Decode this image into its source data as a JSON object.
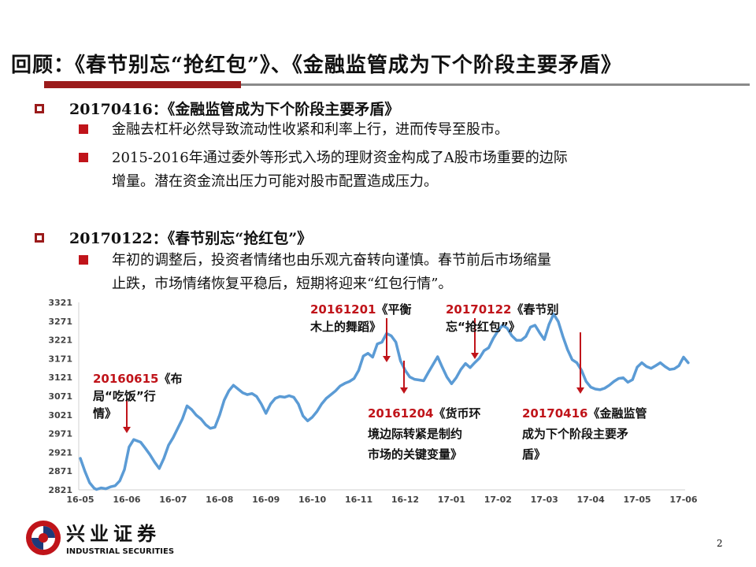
{
  "title": "回顾：《春节别忘“抢红包”》、《金融监管成为下个阶段主要矛盾》",
  "sections": [
    {
      "heading": "20170416：《金融监管成为下个阶段主要矛盾》",
      "bullets": [
        [
          "金融去杠杆必然导致流动性收紧和利率上行，进而传导至股市。"
        ],
        [
          "2015-2016年通过委外等形式入场的理财资金构成了A股市场重要的边际",
          "增量。潜在资金流出压力可能对股市配置造成压力。"
        ]
      ]
    },
    {
      "heading": "20170122：《春节别忘“抢红包”》",
      "bullets": [
        [
          "年初的调整后，投资者情绪也由乐观亢奋转向谨慎。春节前后市场缩量",
          "止跌，市场情绪恢复平稳后，短期将迎来“红包行情”。"
        ]
      ]
    }
  ],
  "chart_data": {
    "type": "line",
    "title": "",
    "xlabel": "",
    "ylabel": "",
    "ylim": [
      2821,
      3321
    ],
    "yticks": [
      2821,
      2871,
      2921,
      2971,
      3021,
      3071,
      3121,
      3171,
      3221,
      3271,
      3321
    ],
    "xticks": [
      "16-05",
      "16-06",
      "16-07",
      "16-08",
      "16-09",
      "16-10",
      "16-11",
      "16-12",
      "17-01",
      "17-02",
      "17-03",
      "17-04",
      "17-05",
      "17-06"
    ],
    "grid": false,
    "line_color": "#5b9bd5",
    "series": [
      {
        "name": "",
        "x": [
          0.0,
          0.1,
          0.2,
          0.3,
          0.35,
          0.45,
          0.55,
          0.65,
          0.75,
          0.85,
          0.95,
          1.05,
          1.15,
          1.3,
          1.4,
          1.5,
          1.6,
          1.7,
          1.8,
          1.9,
          2.0,
          2.1,
          2.2,
          2.3,
          2.4,
          2.5,
          2.6,
          2.7,
          2.8,
          2.9,
          3.0,
          3.1,
          3.2,
          3.3,
          3.4,
          3.5,
          3.6,
          3.7,
          3.8,
          3.9,
          4.0,
          4.1,
          4.2,
          4.3,
          4.4,
          4.5,
          4.6,
          4.7,
          4.8,
          4.9,
          5.0,
          5.1,
          5.2,
          5.3,
          5.4,
          5.5,
          5.6,
          5.7,
          5.8,
          5.9,
          6.0,
          6.1,
          6.2,
          6.3,
          6.4,
          6.5,
          6.6,
          6.7,
          6.8,
          6.9,
          7.0,
          7.1,
          7.2,
          7.3,
          7.4,
          7.5,
          7.6,
          7.7,
          7.8,
          7.9,
          8.0,
          8.1,
          8.2,
          8.3,
          8.4,
          8.5,
          8.6,
          8.7,
          8.8,
          8.9,
          9.0,
          9.1,
          9.2,
          9.3,
          9.4,
          9.5,
          9.6,
          9.7,
          9.8,
          9.9,
          10.0,
          10.1,
          10.2,
          10.3,
          10.4,
          10.5,
          10.6,
          10.7,
          10.8,
          10.9,
          11.0,
          11.1,
          11.2,
          11.3,
          11.4,
          11.5,
          11.6,
          11.7,
          11.8,
          11.9,
          12.0,
          12.1,
          12.2,
          12.3,
          12.4,
          12.5,
          12.6,
          12.7,
          12.8,
          12.9,
          13.0,
          13.1
        ],
        "y": [
          2905,
          2870,
          2840,
          2825,
          2822,
          2826,
          2824,
          2829,
          2832,
          2845,
          2875,
          2935,
          2955,
          2948,
          2932,
          2915,
          2895,
          2878,
          2905,
          2940,
          2960,
          2985,
          3010,
          3045,
          3035,
          3020,
          3010,
          2995,
          2985,
          2988,
          3020,
          3060,
          3085,
          3100,
          3090,
          3080,
          3075,
          3078,
          3070,
          3050,
          3025,
          3050,
          3065,
          3070,
          3068,
          3072,
          3068,
          3050,
          3018,
          3005,
          3015,
          3030,
          3050,
          3065,
          3075,
          3085,
          3098,
          3105,
          3110,
          3118,
          3140,
          3178,
          3185,
          3175,
          3210,
          3215,
          3238,
          3232,
          3215,
          3165,
          3140,
          3122,
          3116,
          3114,
          3112,
          3134,
          3155,
          3176,
          3148,
          3122,
          3104,
          3120,
          3142,
          3158,
          3147,
          3160,
          3172,
          3192,
          3200,
          3225,
          3245,
          3260,
          3252,
          3232,
          3220,
          3220,
          3230,
          3255,
          3260,
          3240,
          3222,
          3262,
          3290,
          3270,
          3230,
          3195,
          3168,
          3160,
          3140,
          3110,
          3095,
          3090,
          3088,
          3092,
          3100,
          3110,
          3118,
          3120,
          3108,
          3115,
          3148,
          3160,
          3150,
          3145,
          3152,
          3160,
          3150,
          3142,
          3144,
          3152,
          3175,
          3160
        ]
      }
    ],
    "annotations": [
      {
        "lines": [
          "20160615《布",
          "局“吃饭”行",
          "情》"
        ],
        "color": "#c0141a",
        "first_line_only": true
      },
      {
        "lines": [
          "20161201《平衡",
          "木上的舞蹈》"
        ],
        "color": "#c0141a",
        "first_line_only": true
      },
      {
        "lines": [
          "20170122《春节别",
          "忘“抢红包”》"
        ],
        "color": "#c0141a",
        "first_line_only": true
      },
      {
        "lines": [
          "20161204《货币环",
          "境边际转紧是制约",
          "市场的关键变量》"
        ],
        "color": "#c0141a",
        "first_line_only": true
      },
      {
        "lines": [
          "20170416《金融监管",
          "成为下个阶段主要矛",
          "盾》"
        ],
        "color": "#c0141a",
        "first_line_only": true
      }
    ]
  },
  "logo": {
    "name_cn": "兴业证券",
    "name_en": "INDUSTRIAL SECURITIES"
  },
  "page_number": "2"
}
